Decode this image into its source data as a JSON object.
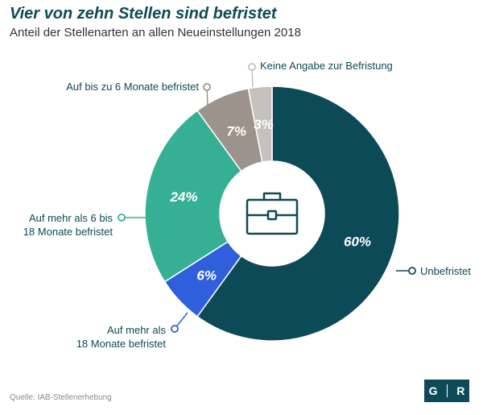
{
  "header": {
    "title": "Vier von zehn Stellen sind befristet",
    "subtitle": "Anteil der Stellenarten an allen Neueinstellungen 2018"
  },
  "footer": {
    "source": "Quelle: IAB-Stellenerhebung",
    "logo_left": "G",
    "logo_right": "R"
  },
  "center_icon": "briefcase-icon",
  "chart_data": {
    "type": "pie",
    "style": "donut",
    "unit": "%",
    "title": "Vier von zehn Stellen sind befristet",
    "subtitle": "Anteil der Stellenarten an allen Neueinstellungen 2018",
    "slices": [
      {
        "label": "Unbefristet",
        "value": 60,
        "value_label": "60%",
        "color": "#0d4a57"
      },
      {
        "label": "Auf mehr als 18 Monate befristet",
        "label_lines": [
          "Auf mehr als",
          "18 Monate befristet"
        ],
        "value": 6,
        "value_label": "6%",
        "color": "#2f5fdc"
      },
      {
        "label": "Auf mehr als 6 bis 18 Monate befristet",
        "label_lines": [
          "Auf mehr als 6 bis",
          "18 Monate befristet"
        ],
        "value": 24,
        "value_label": "24%",
        "color": "#36b094"
      },
      {
        "label": "Auf bis zu 6 Monate befristet",
        "value": 7,
        "value_label": "7%",
        "color": "#9c948c"
      },
      {
        "label": "Keine Angabe zur Befristung",
        "value": 3,
        "value_label": "3%",
        "color": "#c6c1bb"
      }
    ]
  }
}
